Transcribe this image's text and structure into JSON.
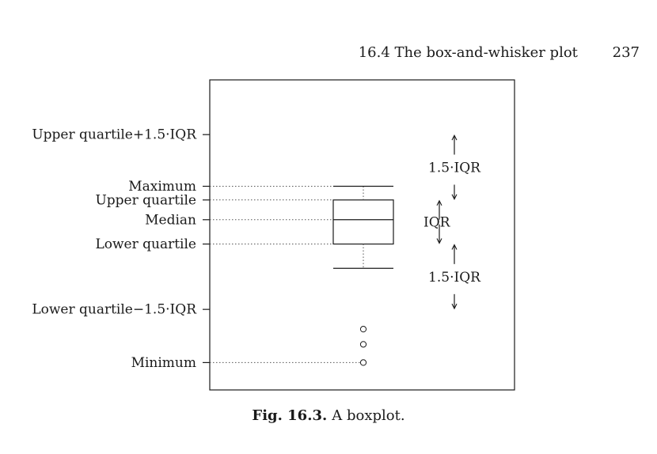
{
  "header": {
    "section": "16.4  The box-and-whisker plot",
    "page_number": "237"
  },
  "figure": {
    "caption_label": "Fig. 16.3.",
    "caption_text": "A boxplot."
  },
  "chart_data": {
    "type": "box",
    "y_axis_labels": [
      {
        "text": "Upper quartile+1.5·IQR",
        "value": 5.0
      },
      {
        "text": "Maximum",
        "value": 3.3
      },
      {
        "text": "Upper quartile",
        "value": 2.85
      },
      {
        "text": "Median",
        "value": 2.2
      },
      {
        "text": "Lower quartile",
        "value": 1.4
      },
      {
        "text": "Lower quartile−1.5·IQR",
        "value": -0.75
      },
      {
        "text": "Minimum",
        "value": -2.5
      }
    ],
    "box": {
      "lower_quartile": 1.4,
      "median": 2.2,
      "upper_quartile": 2.85,
      "whisker_high": 3.3,
      "whisker_low": 0.6
    },
    "outliers": [
      -1.4,
      -1.9,
      -2.5
    ],
    "annotations": [
      {
        "text": "1.5·IQR",
        "from": 2.85,
        "to": 5.0
      },
      {
        "text": "IQR",
        "from": 1.4,
        "to": 2.85
      },
      {
        "text": "1.5·IQR",
        "from": -0.75,
        "to": 1.4
      }
    ],
    "ylim": [
      -3.4,
      6.8
    ]
  }
}
